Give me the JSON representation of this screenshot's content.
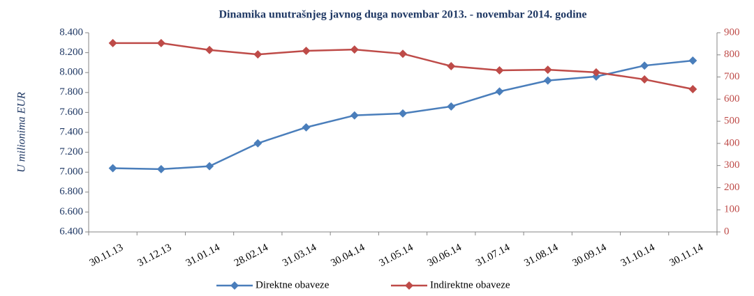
{
  "chart_data": {
    "type": "line",
    "title": "Dinamika unutrašnjeg javnog duga novembar 2013. - novembar 2014. godine",
    "y_label": "U milionima EUR",
    "categories": [
      "30.11.13",
      "31.12.13",
      "31.01.14",
      "28.02.14",
      "31.03.14",
      "30.04.14",
      "31.05.14",
      "30.06.14",
      "31.07.14",
      "31.08.14",
      "30.09.14",
      "31.10.14",
      "30.11.14"
    ],
    "series": [
      {
        "name": "Direktne obaveze",
        "color": "#4a7ebb",
        "axis": "y",
        "values": [
          7040,
          7030,
          7060,
          7290,
          7450,
          7570,
          7590,
          7660,
          7810,
          7920,
          7960,
          8070,
          8120
        ]
      },
      {
        "name": "Indirektne obaveze",
        "color": "#be4b48",
        "axis": "y2",
        "values": [
          853,
          853,
          822,
          802,
          818,
          824,
          805,
          749,
          730,
          733,
          721,
          689,
          645
        ]
      }
    ],
    "ylim": [
      6400,
      8400
    ],
    "yticks": [
      {
        "value": 6400,
        "label": "6.400"
      },
      {
        "value": 6600,
        "label": "6.600"
      },
      {
        "value": 6800,
        "label": "6.800"
      },
      {
        "value": 7000,
        "label": "7.000"
      },
      {
        "value": 7200,
        "label": "7.200"
      },
      {
        "value": 7400,
        "label": "7.400"
      },
      {
        "value": 7600,
        "label": "7.600"
      },
      {
        "value": 7800,
        "label": "7.800"
      },
      {
        "value": 8000,
        "label": "8.000"
      },
      {
        "value": 8200,
        "label": "8.200"
      },
      {
        "value": 8400,
        "label": "8.400"
      }
    ],
    "y2lim": [
      0,
      900
    ],
    "y2ticks": [
      0,
      100,
      200,
      300,
      400,
      500,
      600,
      700,
      800,
      900
    ],
    "legend": "bottom"
  }
}
